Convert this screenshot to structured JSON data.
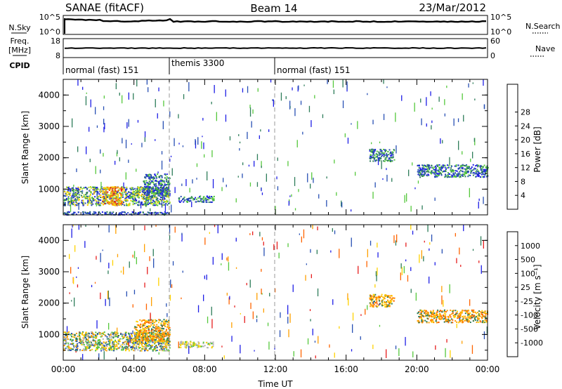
{
  "header": {
    "radar_title": "SANAE (fitACF)",
    "beam_title": "Beam 14",
    "date": "23/Mar/2012"
  },
  "strip": {
    "nsky_label": "N.Sky",
    "nsky_ticks": [
      "10^5",
      "10^0"
    ],
    "nsearch_label": "N.Search",
    "nsearch_ticks": [
      "10^5",
      "10^0"
    ],
    "freq_label_1": "Freq.",
    "freq_label_2": "[MHz]",
    "freq_ticks": [
      "18",
      "8"
    ],
    "nave_label": "Nave",
    "nave_ticks": [
      "60",
      "0"
    ],
    "cpid_label": "CPID"
  },
  "modes": [
    {
      "label": "normal (fast) 151",
      "start": 0.0,
      "end": 6.0
    },
    {
      "label": "themis 3300",
      "start": 6.0,
      "end": 12.0
    },
    {
      "label": "normal (fast) 151",
      "start": 12.0,
      "end": 24.0
    }
  ],
  "chart_data": [
    {
      "type": "heatmap",
      "name": "power-panel",
      "ylabel": "Slant Range [km]",
      "xlabel": "",
      "xlim": [
        0,
        24
      ],
      "ylim": [
        180,
        4500
      ],
      "xticks": [
        "00:00",
        "04:00",
        "08:00",
        "12:00",
        "16:00",
        "20:00",
        "00:00"
      ],
      "yticks": [
        1000,
        2000,
        3000,
        4000
      ],
      "colorbar": {
        "label": "Power [dB]",
        "ticks": [
          "4",
          "8",
          "12",
          "16",
          "20",
          "24",
          "28"
        ],
        "colors": [
          "#1e1ee6",
          "#2850b4",
          "#2e7d5a",
          "#55c83c",
          "#b4dc28",
          "#ffd200",
          "#ffa000",
          "#ff6400",
          "#e61e1e"
        ]
      },
      "regions": [
        {
          "t0": 0.0,
          "t1": 6.0,
          "r0": 500,
          "r1": 1100,
          "level": "high"
        },
        {
          "t0": 2.2,
          "t1": 3.3,
          "r0": 500,
          "r1": 1100,
          "level": "peak"
        },
        {
          "t0": 4.5,
          "t1": 6.0,
          "r0": 800,
          "r1": 1500,
          "level": "medium"
        },
        {
          "t0": 6.5,
          "t1": 8.5,
          "r0": 600,
          "r1": 800,
          "level": "medium"
        },
        {
          "t0": 0.0,
          "t1": 6.0,
          "r0": 200,
          "r1": 300,
          "level": "low"
        },
        {
          "t0": 17.3,
          "t1": 18.7,
          "r0": 1900,
          "r1": 2300,
          "level": "medium"
        },
        {
          "t0": 20.0,
          "t1": 24.0,
          "r0": 1400,
          "r1": 1800,
          "level": "medium"
        }
      ]
    },
    {
      "type": "heatmap",
      "name": "velocity-panel",
      "ylabel": "Slant Range [km]",
      "xlabel": "Time UT",
      "xlim": [
        0,
        24
      ],
      "ylim": [
        180,
        4500
      ],
      "xticks": [
        "00:00",
        "04:00",
        "08:00",
        "12:00",
        "16:00",
        "20:00",
        "00:00"
      ],
      "yticks": [
        1000,
        2000,
        3000,
        4000
      ],
      "colorbar": {
        "label": "Velocity [m s⁻¹]",
        "ticks": [
          "1000",
          "500",
          "100",
          "25",
          "-25",
          "-100",
          "-500",
          "-1000"
        ],
        "colors": [
          "#1e1ee6",
          "#2850b4",
          "#2e7d5a",
          "#55c83c",
          "#b4b4b4",
          "#ffd200",
          "#ffa000",
          "#ff6400",
          "#e61e1e"
        ]
      },
      "regions": [
        {
          "t0": 0.0,
          "t1": 6.0,
          "r0": 500,
          "r1": 1100,
          "level": "mixed"
        },
        {
          "t0": 4.0,
          "t1": 6.0,
          "r0": 800,
          "r1": 1500,
          "level": "away"
        },
        {
          "t0": 6.5,
          "t1": 8.5,
          "r0": 600,
          "r1": 800,
          "level": "slow"
        },
        {
          "t0": 17.3,
          "t1": 18.7,
          "r0": 1900,
          "r1": 2300,
          "level": "away"
        },
        {
          "t0": 20.0,
          "t1": 24.0,
          "r0": 1400,
          "r1": 1800,
          "level": "away"
        }
      ]
    }
  ]
}
